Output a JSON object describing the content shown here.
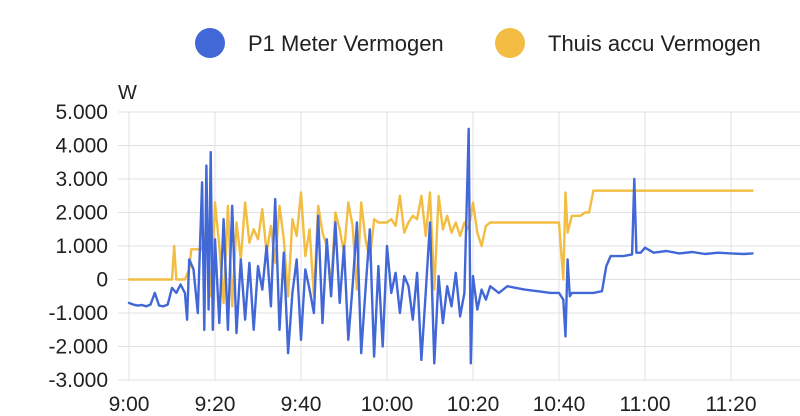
{
  "chart_data": {
    "type": "line",
    "ylabel": "W",
    "ylim": [
      -3000,
      5000
    ],
    "y_ticks": [
      5000,
      4000,
      3000,
      2000,
      1000,
      0,
      -1000,
      -2000,
      -3000
    ],
    "y_tick_labels": [
      "5.000",
      "4.000",
      "3.000",
      "2.000",
      "1.000",
      "0",
      "-1.000",
      "-2.000",
      "-3.000"
    ],
    "x_tick_labels": [
      "9:00",
      "9:20",
      "9:40",
      "10:00",
      "10:20",
      "10:40",
      "11:00",
      "11:20"
    ],
    "x_tick_minutes": [
      0,
      20,
      40,
      60,
      80,
      100,
      120,
      140
    ],
    "grid": true,
    "legend_position": "top",
    "series": [
      {
        "name": "P1 Meter Vermogen",
        "color": "#4267d6",
        "points": [
          [
            0,
            -700
          ],
          [
            1,
            -750
          ],
          [
            2,
            -780
          ],
          [
            3,
            -760
          ],
          [
            4,
            -800
          ],
          [
            5,
            -750
          ],
          [
            6,
            -400
          ],
          [
            7,
            -780
          ],
          [
            8,
            -800
          ],
          [
            9,
            -750
          ],
          [
            10,
            -250
          ],
          [
            11,
            -400
          ],
          [
            12,
            -150
          ],
          [
            13,
            -400
          ],
          [
            13.5,
            -1200
          ],
          [
            14,
            600
          ],
          [
            15,
            300
          ],
          [
            16,
            -1000
          ],
          [
            17,
            2900
          ],
          [
            17.5,
            -1500
          ],
          [
            18,
            3400
          ],
          [
            18.5,
            -900
          ],
          [
            19,
            3800
          ],
          [
            19.5,
            -1500
          ],
          [
            20,
            1200
          ],
          [
            21,
            -1300
          ],
          [
            22,
            1800
          ],
          [
            23,
            -1500
          ],
          [
            24,
            2200
          ],
          [
            25,
            -1600
          ],
          [
            26,
            600
          ],
          [
            27,
            -1200
          ],
          [
            28,
            500
          ],
          [
            29,
            -1500
          ],
          [
            30,
            400
          ],
          [
            31,
            -300
          ],
          [
            32,
            1000
          ],
          [
            33,
            -800
          ],
          [
            34,
            2400
          ],
          [
            35,
            -1500
          ],
          [
            36,
            800
          ],
          [
            37,
            -2200
          ],
          [
            38,
            -400
          ],
          [
            39,
            600
          ],
          [
            40,
            -1800
          ],
          [
            41,
            300
          ],
          [
            42,
            -300
          ],
          [
            43,
            -1000
          ],
          [
            44,
            1900
          ],
          [
            45,
            -1300
          ],
          [
            46,
            1200
          ],
          [
            47,
            -500
          ],
          [
            48,
            1700
          ],
          [
            49,
            -700
          ],
          [
            50,
            1000
          ],
          [
            51,
            -1800
          ],
          [
            52,
            -200
          ],
          [
            53,
            1700
          ],
          [
            54,
            -2200
          ],
          [
            55,
            -300
          ],
          [
            56,
            1500
          ],
          [
            57,
            -2300
          ],
          [
            58,
            400
          ],
          [
            59,
            -2000
          ],
          [
            60,
            1000
          ],
          [
            61,
            -400
          ],
          [
            62,
            200
          ],
          [
            63,
            -1000
          ],
          [
            64,
            100
          ],
          [
            65,
            -200
          ],
          [
            66,
            -1200
          ],
          [
            67,
            200
          ],
          [
            68,
            -2400
          ],
          [
            69,
            -400
          ],
          [
            70,
            1700
          ],
          [
            71,
            -2500
          ],
          [
            72,
            100
          ],
          [
            73,
            -1300
          ],
          [
            74,
            -200
          ],
          [
            75,
            -800
          ],
          [
            76,
            200
          ],
          [
            77,
            -1100
          ],
          [
            78,
            -400
          ],
          [
            79,
            4500
          ],
          [
            79.5,
            -2500
          ],
          [
            80,
            100
          ],
          [
            81,
            -900
          ],
          [
            82,
            -300
          ],
          [
            83,
            -600
          ],
          [
            84,
            -200
          ],
          [
            85,
            -300
          ],
          [
            86,
            -400
          ],
          [
            88,
            -200
          ],
          [
            90,
            -250
          ],
          [
            92,
            -300
          ],
          [
            95,
            -350
          ],
          [
            98,
            -400
          ],
          [
            100,
            -400
          ],
          [
            101,
            -600
          ],
          [
            101.5,
            -1700
          ],
          [
            102,
            600
          ],
          [
            102.5,
            -500
          ],
          [
            103,
            -400
          ],
          [
            104,
            -400
          ],
          [
            106,
            -400
          ],
          [
            108,
            -400
          ],
          [
            110,
            -350
          ],
          [
            111,
            400
          ],
          [
            112,
            700
          ],
          [
            113,
            700
          ],
          [
            115,
            700
          ],
          [
            117,
            750
          ],
          [
            117.5,
            3000
          ],
          [
            118,
            800
          ],
          [
            119,
            800
          ],
          [
            120,
            950
          ],
          [
            122,
            800
          ],
          [
            125,
            850
          ],
          [
            128,
            780
          ],
          [
            131,
            820
          ],
          [
            134,
            760
          ],
          [
            137,
            800
          ],
          [
            140,
            780
          ],
          [
            143,
            760
          ],
          [
            145,
            780
          ]
        ]
      },
      {
        "name": "Thuis accu Vermogen",
        "color": "#f2bd42",
        "points": [
          [
            0,
            0
          ],
          [
            6,
            0
          ],
          [
            9,
            0
          ],
          [
            10,
            0
          ],
          [
            10.5,
            1000
          ],
          [
            11,
            0
          ],
          [
            13,
            0
          ],
          [
            14,
            300
          ],
          [
            14.5,
            900
          ],
          [
            15,
            900
          ],
          [
            17,
            900
          ],
          [
            18,
            1600
          ],
          [
            19,
            -500
          ],
          [
            20,
            2300
          ],
          [
            21,
            1000
          ],
          [
            22,
            -700
          ],
          [
            23,
            2200
          ],
          [
            24,
            -800
          ],
          [
            25,
            1700
          ],
          [
            26,
            600
          ],
          [
            27,
            2300
          ],
          [
            28,
            1100
          ],
          [
            29,
            1500
          ],
          [
            30,
            1200
          ],
          [
            31,
            2100
          ],
          [
            32,
            800
          ],
          [
            33,
            1600
          ],
          [
            34,
            500
          ],
          [
            35,
            2200
          ],
          [
            36,
            1200
          ],
          [
            37,
            -500
          ],
          [
            38,
            1800
          ],
          [
            39,
            1300
          ],
          [
            40,
            2600
          ],
          [
            41,
            700
          ],
          [
            42,
            1500
          ],
          [
            43,
            -500
          ],
          [
            44,
            2200
          ],
          [
            45,
            1400
          ],
          [
            46,
            1000
          ],
          [
            47,
            -200
          ],
          [
            48,
            2000
          ],
          [
            49,
            1500
          ],
          [
            50,
            800
          ],
          [
            51,
            2300
          ],
          [
            52,
            1600
          ],
          [
            53,
            -300
          ],
          [
            54,
            2300
          ],
          [
            55,
            1200
          ],
          [
            56,
            600
          ],
          [
            57,
            1800
          ],
          [
            58,
            1700
          ],
          [
            59,
            1700
          ],
          [
            60,
            1700
          ],
          [
            61,
            1800
          ],
          [
            62,
            1600
          ],
          [
            63,
            2500
          ],
          [
            64,
            1400
          ],
          [
            65,
            1700
          ],
          [
            66,
            1900
          ],
          [
            67,
            1800
          ],
          [
            68,
            2500
          ],
          [
            69,
            1300
          ],
          [
            70,
            2600
          ],
          [
            71,
            -300
          ],
          [
            72,
            2500
          ],
          [
            73,
            1500
          ],
          [
            74,
            1900
          ],
          [
            75,
            1400
          ],
          [
            76,
            1700
          ],
          [
            77,
            1300
          ],
          [
            78,
            1700
          ],
          [
            79,
            1500
          ],
          [
            80,
            2300
          ],
          [
            81,
            1400
          ],
          [
            82,
            1000
          ],
          [
            83,
            1600
          ],
          [
            84,
            1700
          ],
          [
            86,
            1700
          ],
          [
            88,
            1700
          ],
          [
            90,
            1700
          ],
          [
            92,
            1700
          ],
          [
            95,
            1700
          ],
          [
            98,
            1700
          ],
          [
            100,
            1700
          ],
          [
            101,
            0
          ],
          [
            101.5,
            2600
          ],
          [
            102,
            1400
          ],
          [
            103,
            1900
          ],
          [
            105,
            1900
          ],
          [
            106,
            2000
          ],
          [
            107,
            2000
          ],
          [
            108,
            2650
          ],
          [
            110,
            2650
          ],
          [
            113,
            2650
          ],
          [
            116,
            2650
          ],
          [
            119,
            2650
          ],
          [
            122,
            2650
          ],
          [
            125,
            2650
          ],
          [
            128,
            2650
          ],
          [
            131,
            2650
          ],
          [
            134,
            2650
          ],
          [
            137,
            2650
          ],
          [
            140,
            2650
          ],
          [
            143,
            2650
          ],
          [
            145,
            2650
          ]
        ]
      }
    ]
  }
}
